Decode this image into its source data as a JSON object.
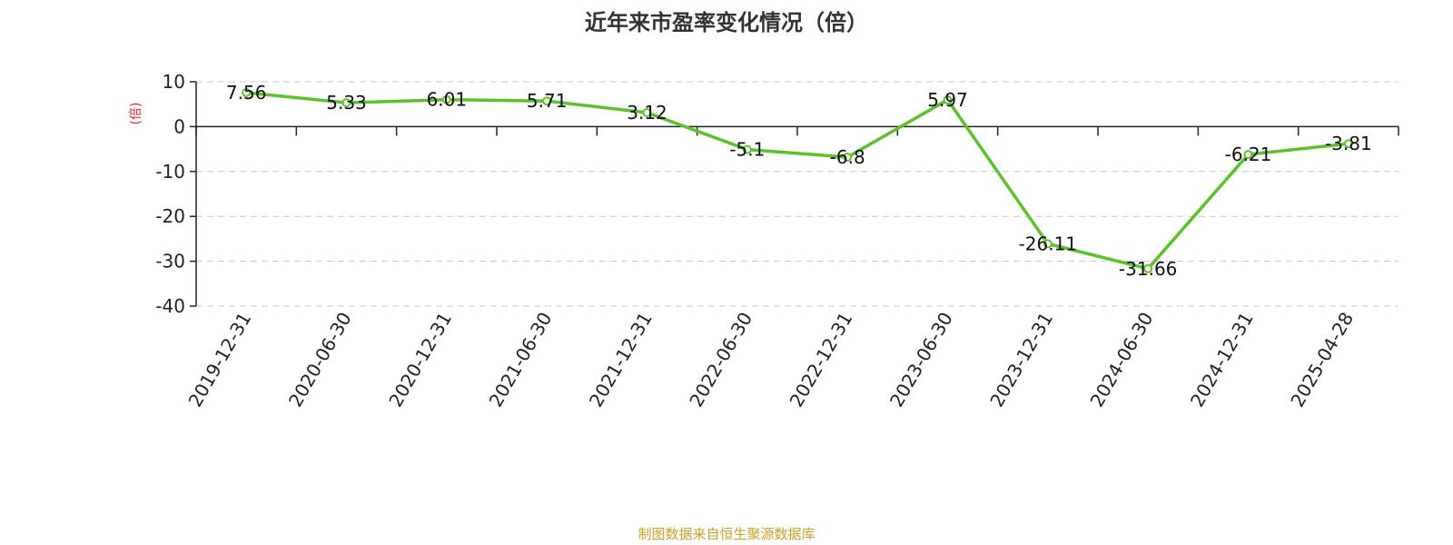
{
  "chart_data": {
    "type": "line",
    "title": "近年来市盈率变化情况（倍）",
    "ylabel": "(倍)",
    "xlabel": "",
    "ylim": [
      -40,
      10
    ],
    "yticks": [
      10,
      0,
      -10,
      -20,
      -30,
      -40
    ],
    "categories": [
      "2019-12-31",
      "2020-06-30",
      "2020-12-31",
      "2021-06-30",
      "2021-12-31",
      "2022-06-30",
      "2022-12-31",
      "2023-06-30",
      "2023-12-31",
      "2024-06-30",
      "2024-12-31",
      "2025-04-28"
    ],
    "series": [
      {
        "values": [
          7.56,
          5.33,
          6.01,
          5.71,
          3.12,
          -5.1,
          -6.8,
          5.97,
          -26.11,
          -31.66,
          -6.21,
          -3.81
        ],
        "labels": [
          "7.56",
          "5.33",
          "6.01",
          "5.71",
          "3.12",
          "-5.1",
          "-6.8",
          "5.97",
          "-26.11",
          "-31.66",
          "-6.21",
          "-3.81"
        ],
        "color": "#5cc22b"
      }
    ],
    "grid": true,
    "source": "制图数据来自恒生聚源数据库"
  }
}
